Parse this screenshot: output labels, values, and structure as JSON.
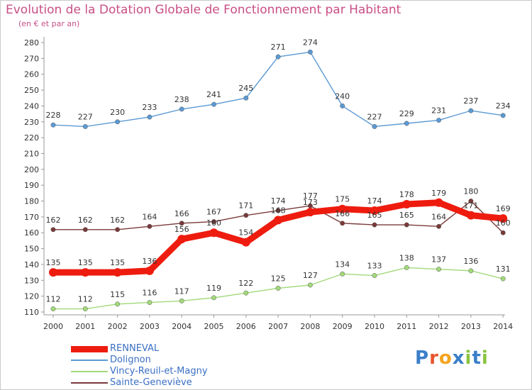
{
  "title": "Evolution de la Dotation Globale de Fonctionnement par Habitant",
  "subtitle": "(en € et par an)",
  "logo": {
    "text": "Proxiti",
    "letters": [
      {
        "ch": "P",
        "color": "#3a7fc9"
      },
      {
        "ch": "r",
        "color": "#e8542e"
      },
      {
        "ch": "o",
        "color": "#f2a51c"
      },
      {
        "ch": "x",
        "color": "#3a7fc9"
      },
      {
        "ch": "i",
        "color": "#8bc43f"
      },
      {
        "ch": "t",
        "color": "#3a7fc9"
      },
      {
        "ch": "i",
        "color": "#8bc43f"
      }
    ]
  },
  "chart_data": {
    "type": "line",
    "x": [
      "2000",
      "2001",
      "2002",
      "2003",
      "2004",
      "2005",
      "2006",
      "2007",
      "2008",
      "2009",
      "2010",
      "2011",
      "2012",
      "2013",
      "2014"
    ],
    "ylim": [
      110,
      280
    ],
    "yticks": [
      110,
      120,
      130,
      140,
      150,
      160,
      170,
      180,
      190,
      200,
      210,
      220,
      230,
      240,
      250,
      260,
      270,
      280
    ],
    "grid": false,
    "legend_position": "bottom-left",
    "series": [
      {
        "name": "RENNEVAL",
        "color": "#ee1c0f",
        "emphasis": true,
        "values": [
          135,
          135,
          135,
          136,
          156,
          160,
          154,
          168,
          173,
          175,
          174,
          178,
          179,
          171,
          169
        ]
      },
      {
        "name": "Dolignon",
        "color": "#5b9ad4",
        "emphasis": false,
        "values": [
          228,
          227,
          230,
          233,
          238,
          241,
          245,
          271,
          274,
          240,
          227,
          229,
          231,
          237,
          234
        ]
      },
      {
        "name": "Vincy-Reuil-et-Magny",
        "color": "#a2d97a",
        "emphasis": false,
        "values": [
          112,
          112,
          115,
          116,
          117,
          119,
          122,
          125,
          127,
          134,
          133,
          138,
          137,
          136,
          131
        ]
      },
      {
        "name": "Sainte-Geneviève",
        "color": "#7a3a3a",
        "emphasis": false,
        "values": [
          162,
          162,
          162,
          164,
          166,
          167,
          171,
          174,
          177,
          166,
          165,
          165,
          164,
          180,
          160
        ]
      }
    ]
  }
}
